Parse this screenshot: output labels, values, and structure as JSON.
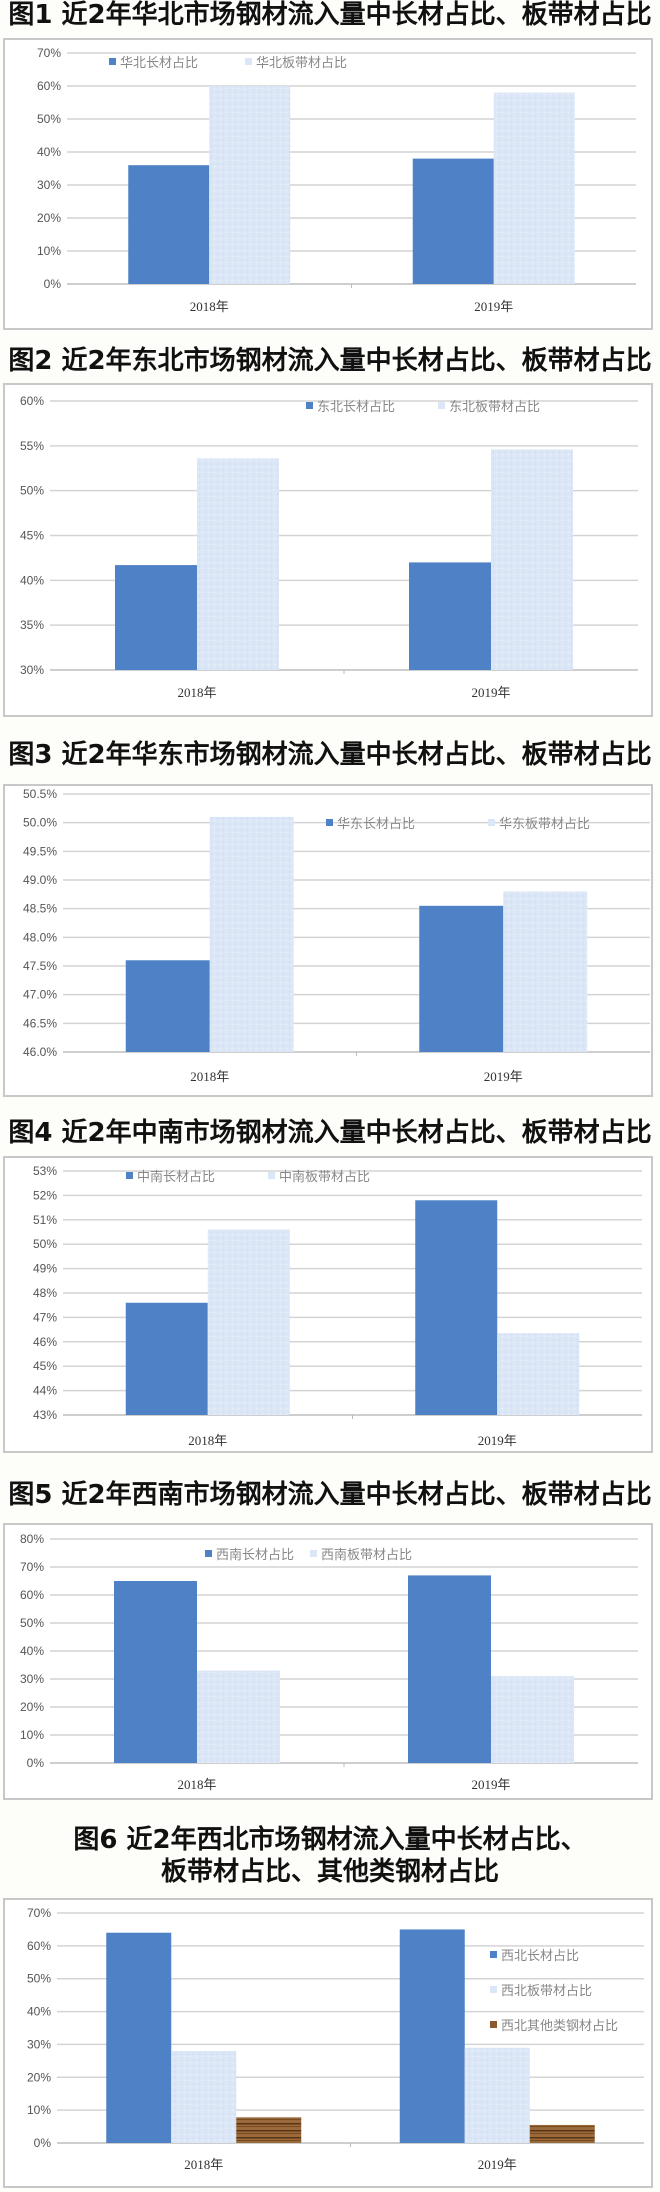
{
  "colors": {
    "long": "#4f81c6",
    "plate": "#d9e6f7",
    "other": "#8a5a2e",
    "grid": "#d0d0d0",
    "page": "#fdfdf9"
  },
  "chart_data": [
    {
      "type": "bar",
      "title": "图1 近2年华北市场钢材流入量中长材占比、板带材占比",
      "categories": [
        "2018年",
        "2019年"
      ],
      "ylim": [
        0,
        70
      ],
      "yticks": [
        "0%",
        "10%",
        "20%",
        "30%",
        "40%",
        "50%",
        "60%",
        "70%"
      ],
      "grid": true,
      "legend_position": "top-left",
      "series": [
        {
          "name": "华北长材占比",
          "values": [
            36,
            38
          ]
        },
        {
          "name": "华北板带材占比",
          "values": [
            60,
            58
          ]
        }
      ]
    },
    {
      "type": "bar",
      "title": "图2 近2年东北市场钢材流入量中长材占比、板带材占比",
      "categories": [
        "2018年",
        "2019年"
      ],
      "ylim": [
        30,
        60
      ],
      "yticks": [
        "30%",
        "35%",
        "40%",
        "45%",
        "50%",
        "55%",
        "60%"
      ],
      "grid": true,
      "legend_position": "top-right",
      "series": [
        {
          "name": "东北长材占比",
          "values": [
            41.7,
            42.0
          ]
        },
        {
          "name": "东北板带材占比",
          "values": [
            53.6,
            54.6
          ]
        }
      ]
    },
    {
      "type": "bar",
      "title": "图3 近2年华东市场钢材流入量中长材占比、板带材占比",
      "categories": [
        "2018年",
        "2019年"
      ],
      "ylim": [
        46,
        50.5
      ],
      "yticks": [
        "46.0%",
        "46.5%",
        "47.0%",
        "47.5%",
        "48.0%",
        "48.5%",
        "49.0%",
        "49.5%",
        "50.0%",
        "50.5%"
      ],
      "grid": true,
      "legend_position": "top-right",
      "series": [
        {
          "name": "华东长材占比",
          "values": [
            47.6,
            48.55
          ]
        },
        {
          "name": "华东板带材占比",
          "values": [
            50.1,
            48.8
          ]
        }
      ]
    },
    {
      "type": "bar",
      "title": "图4 近2年中南市场钢材流入量中长材占比、板带材占比",
      "categories": [
        "2018年",
        "2019年"
      ],
      "ylim": [
        43,
        53
      ],
      "yticks": [
        "43%",
        "44%",
        "45%",
        "46%",
        "47%",
        "48%",
        "49%",
        "50%",
        "51%",
        "52%",
        "53%"
      ],
      "grid": true,
      "legend_position": "top-left",
      "series": [
        {
          "name": "中南长材占比",
          "values": [
            47.6,
            51.8
          ]
        },
        {
          "name": "中南板带材占比",
          "values": [
            50.6,
            46.35
          ]
        }
      ]
    },
    {
      "type": "bar",
      "title": "图5 近2年西南市场钢材流入量中长材占比、板带材占比",
      "categories": [
        "2018年",
        "2019年"
      ],
      "ylim": [
        0,
        80
      ],
      "yticks": [
        "0%",
        "10%",
        "20%",
        "30%",
        "40%",
        "50%",
        "60%",
        "70%",
        "80%"
      ],
      "grid": true,
      "legend_position": "top",
      "series": [
        {
          "name": "西南长材占比",
          "values": [
            65,
            67
          ]
        },
        {
          "name": "西南板带材占比",
          "values": [
            33,
            31
          ]
        }
      ]
    },
    {
      "type": "bar",
      "title": "图6 近2年西北市场钢材流入量中长材占比、",
      "title_line2": "板带材占比、其他类钢材占比",
      "categories": [
        "2018年",
        "2019年"
      ],
      "ylim": [
        0,
        70
      ],
      "yticks": [
        "0%",
        "10%",
        "20%",
        "30%",
        "40%",
        "50%",
        "60%",
        "70%"
      ],
      "grid": true,
      "legend_position": "right",
      "series": [
        {
          "name": "西北长材占比",
          "values": [
            64,
            65
          ]
        },
        {
          "name": "西北板带材占比",
          "values": [
            28,
            29
          ]
        },
        {
          "name": "西北其他类钢材占比",
          "values": [
            7.8,
            5.5
          ]
        }
      ]
    }
  ]
}
